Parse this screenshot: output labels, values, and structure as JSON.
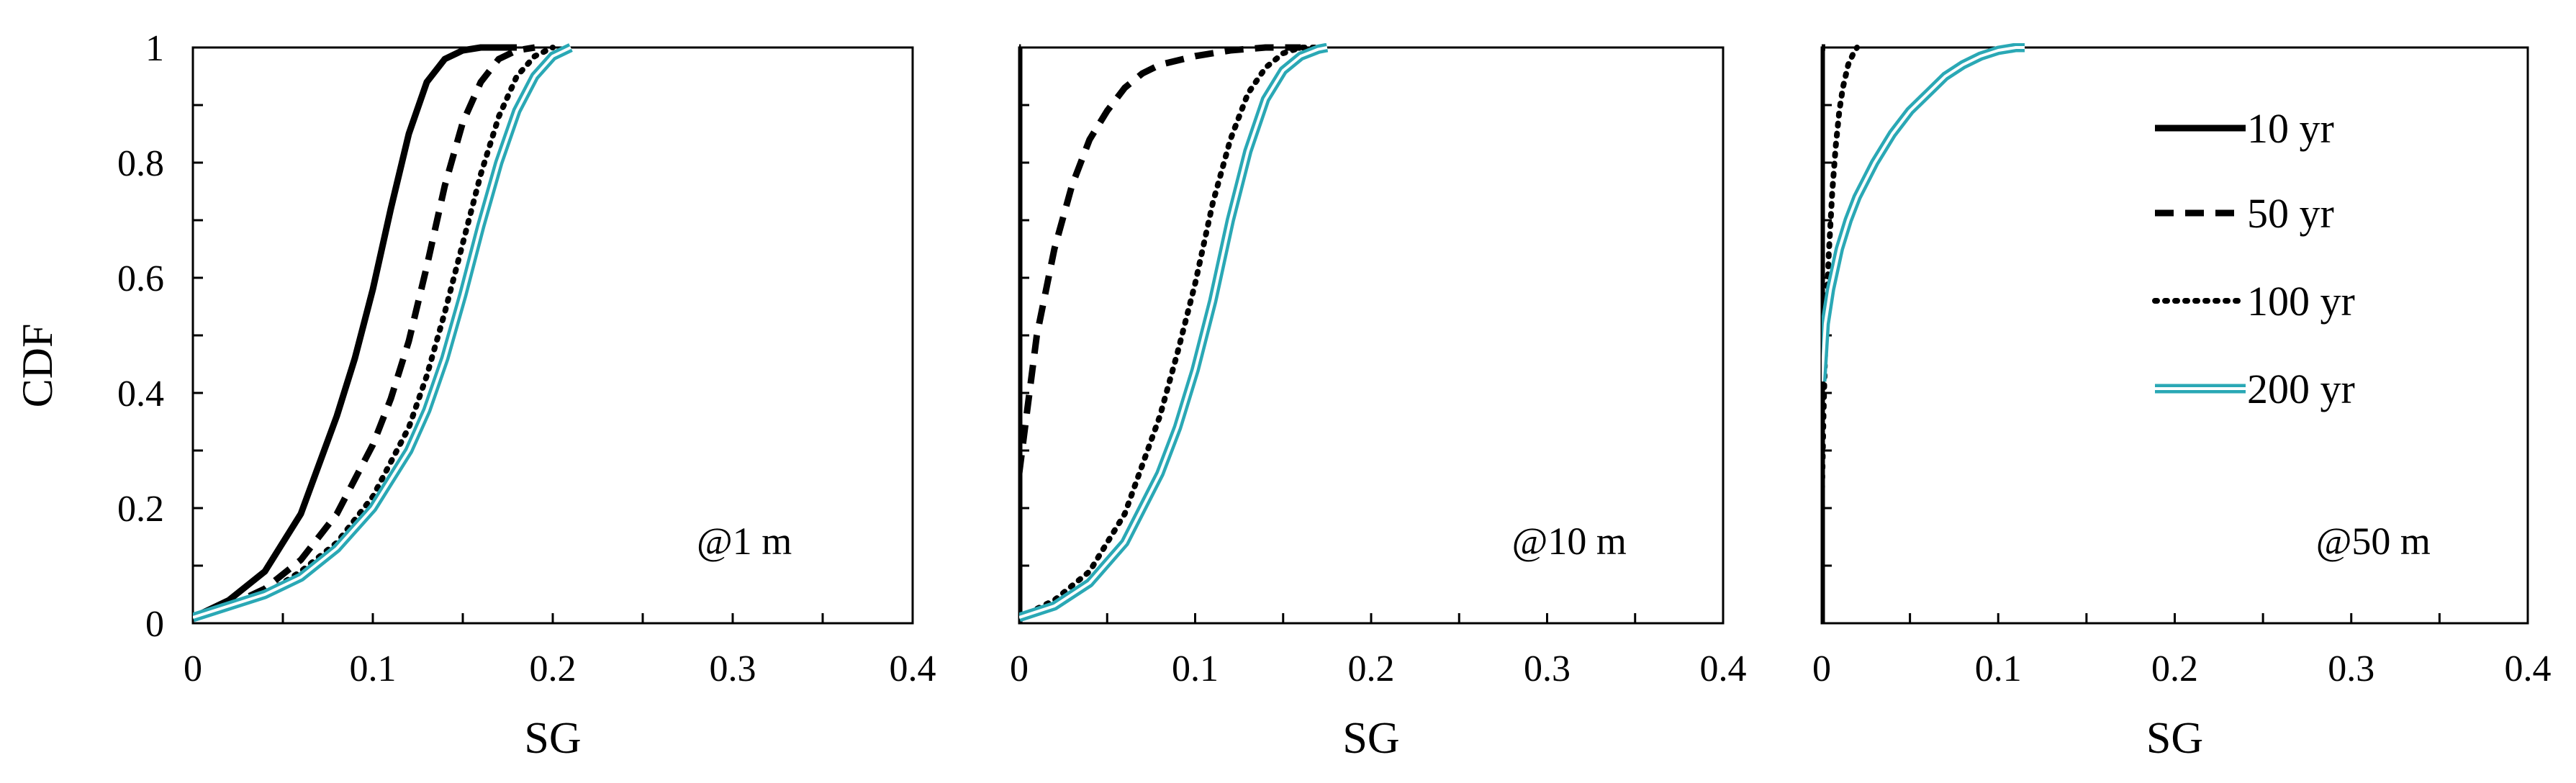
{
  "figure": {
    "ylabel": "CDF",
    "xlabel": "SG"
  },
  "legend": {
    "position": "top-right of third panel",
    "entries": [
      {
        "label": "10 yr",
        "style": "solid"
      },
      {
        "label": "50 yr",
        "style": "dashed"
      },
      {
        "label": "100 yr",
        "style": "dotted"
      },
      {
        "label": "200 yr",
        "style": "double"
      }
    ]
  },
  "colors": {
    "black": "#000000",
    "teal": "#2aa8b5"
  },
  "chart_data": [
    {
      "type": "line",
      "panel_label": "@1 m",
      "xlabel": "SG",
      "ylabel": "CDF",
      "xlim": [
        0,
        0.4
      ],
      "ylim": [
        0,
        1
      ],
      "xticks": [
        0,
        0.1,
        0.2,
        0.3,
        0.4
      ],
      "xtick_labels": [
        "0",
        "0.1",
        "0.2",
        "0.3",
        "0.4"
      ],
      "yticks": [
        0,
        0.2,
        0.4,
        0.6,
        0.8,
        1
      ],
      "ytick_labels": [
        "0",
        "0.2",
        "0.4",
        "0.6",
        "0.8",
        "1"
      ],
      "series": [
        {
          "name": "10 yr",
          "style": "solid",
          "x": [
            0,
            0.02,
            0.04,
            0.06,
            0.08,
            0.09,
            0.1,
            0.11,
            0.12,
            0.13,
            0.14,
            0.15,
            0.16,
            0.18
          ],
          "y": [
            0.01,
            0.04,
            0.09,
            0.19,
            0.36,
            0.46,
            0.58,
            0.72,
            0.85,
            0.94,
            0.98,
            0.995,
            1.0,
            1.0
          ]
        },
        {
          "name": "50 yr",
          "style": "dashed",
          "x": [
            0,
            0.02,
            0.04,
            0.06,
            0.08,
            0.1,
            0.11,
            0.12,
            0.13,
            0.14,
            0.15,
            0.16,
            0.17,
            0.18,
            0.19
          ],
          "y": [
            0.01,
            0.03,
            0.06,
            0.11,
            0.19,
            0.31,
            0.39,
            0.49,
            0.62,
            0.76,
            0.87,
            0.94,
            0.98,
            0.995,
            1.0
          ]
        },
        {
          "name": "100 yr",
          "style": "dotted",
          "x": [
            0,
            0.02,
            0.04,
            0.06,
            0.08,
            0.1,
            0.12,
            0.13,
            0.14,
            0.15,
            0.16,
            0.17,
            0.18,
            0.19,
            0.2
          ],
          "y": [
            0.01,
            0.03,
            0.05,
            0.09,
            0.14,
            0.22,
            0.34,
            0.43,
            0.54,
            0.66,
            0.78,
            0.88,
            0.95,
            0.985,
            1.0
          ]
        },
        {
          "name": "200 yr",
          "style": "double",
          "x": [
            0,
            0.02,
            0.04,
            0.06,
            0.08,
            0.1,
            0.12,
            0.13,
            0.14,
            0.15,
            0.16,
            0.17,
            0.18,
            0.19,
            0.2,
            0.21
          ],
          "y": [
            0.01,
            0.03,
            0.05,
            0.08,
            0.13,
            0.2,
            0.3,
            0.37,
            0.46,
            0.57,
            0.69,
            0.8,
            0.89,
            0.95,
            0.985,
            1.0
          ]
        }
      ]
    },
    {
      "type": "line",
      "panel_label": "@10 m",
      "xlabel": "SG",
      "ylabel": "",
      "xlim": [
        0,
        0.4
      ],
      "ylim": [
        0,
        1
      ],
      "xticks": [
        0,
        0.1,
        0.2,
        0.3,
        0.4
      ],
      "xtick_labels": [
        "0",
        "0.1",
        "0.2",
        "0.3",
        "0.4"
      ],
      "yticks": [
        0,
        0.2,
        0.4,
        0.6,
        0.8,
        1
      ],
      "ytick_labels": [],
      "series": [
        {
          "name": "10 yr",
          "style": "solid",
          "x": [
            0,
            0,
            0.001
          ],
          "y": [
            0,
            1,
            1
          ]
        },
        {
          "name": "50 yr",
          "style": "dashed",
          "x": [
            0,
            0.005,
            0.01,
            0.02,
            0.03,
            0.04,
            0.05,
            0.06,
            0.07,
            0.08,
            0.1,
            0.12,
            0.14,
            0.16
          ],
          "y": [
            0.26,
            0.38,
            0.5,
            0.65,
            0.76,
            0.84,
            0.89,
            0.93,
            0.955,
            0.97,
            0.985,
            0.995,
            1.0,
            1.0
          ]
        },
        {
          "name": "100 yr",
          "style": "dotted",
          "x": [
            0,
            0.02,
            0.04,
            0.06,
            0.08,
            0.09,
            0.1,
            0.11,
            0.12,
            0.13,
            0.14,
            0.15,
            0.16,
            0.17
          ],
          "y": [
            0.01,
            0.04,
            0.09,
            0.19,
            0.36,
            0.47,
            0.59,
            0.73,
            0.84,
            0.92,
            0.965,
            0.99,
            1.0,
            1.0
          ]
        },
        {
          "name": "200 yr",
          "style": "double",
          "x": [
            0,
            0.02,
            0.04,
            0.06,
            0.08,
            0.09,
            0.1,
            0.11,
            0.12,
            0.13,
            0.14,
            0.15,
            0.16,
            0.17,
            0.175
          ],
          "y": [
            0.01,
            0.03,
            0.07,
            0.14,
            0.26,
            0.34,
            0.44,
            0.56,
            0.7,
            0.82,
            0.91,
            0.96,
            0.985,
            0.997,
            1.0
          ]
        }
      ]
    },
    {
      "type": "line",
      "panel_label": "@50 m",
      "xlabel": "SG",
      "ylabel": "",
      "xlim": [
        0,
        0.4
      ],
      "ylim": [
        0,
        1
      ],
      "xticks": [
        0,
        0.1,
        0.2,
        0.3,
        0.4
      ],
      "xtick_labels": [
        "0",
        "0.1",
        "0.2",
        "0.3",
        "0.4"
      ],
      "yticks": [
        0,
        0.2,
        0.4,
        0.6,
        0.8,
        1
      ],
      "ytick_labels": [],
      "series": [
        {
          "name": "10 yr",
          "style": "solid",
          "x": [
            0,
            0,
            0.001
          ],
          "y": [
            0,
            1,
            1
          ]
        },
        {
          "name": "50 yr",
          "style": "dashed",
          "x": [
            0,
            0,
            0.002
          ],
          "y": [
            0,
            1,
            1
          ]
        },
        {
          "name": "100 yr",
          "style": "dotted",
          "x": [
            0,
            0.001,
            0.002,
            0.004,
            0.006,
            0.008,
            0.01,
            0.012,
            0.015,
            0.018,
            0.02
          ],
          "y": [
            0.2,
            0.36,
            0.48,
            0.64,
            0.75,
            0.83,
            0.89,
            0.93,
            0.97,
            0.99,
            1.0
          ]
        },
        {
          "name": "200 yr",
          "style": "double",
          "x": [
            0,
            0.002,
            0.005,
            0.01,
            0.015,
            0.02,
            0.03,
            0.04,
            0.05,
            0.06,
            0.07,
            0.08,
            0.09,
            0.1,
            0.11,
            0.115
          ],
          "y": [
            0.42,
            0.52,
            0.58,
            0.65,
            0.7,
            0.74,
            0.8,
            0.85,
            0.89,
            0.92,
            0.95,
            0.97,
            0.985,
            0.995,
            1.0,
            1.0
          ]
        }
      ]
    }
  ]
}
